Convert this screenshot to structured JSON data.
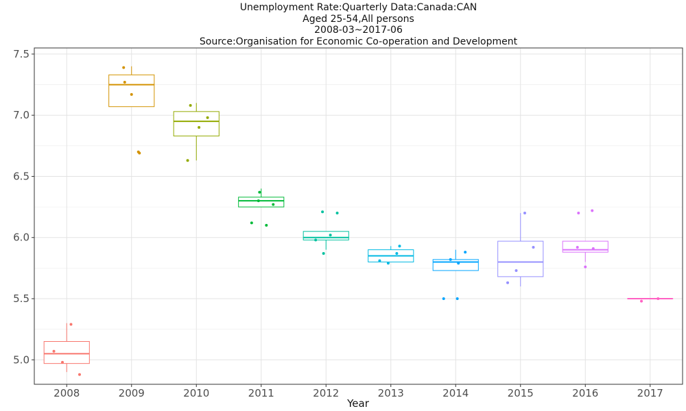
{
  "chart_data": {
    "type": "boxplot",
    "title_lines": [
      "Unemployment Rate:Quarterly Data:Canada:CAN",
      "Aged 25-54,All persons",
      "2008-03~2017-06",
      "Source:Organisation for Economic Co-operation and Development"
    ],
    "xlabel": "Year",
    "ylabel": "",
    "ylim": [
      4.8,
      7.55
    ],
    "yticks": [
      "5.0",
      "5.5",
      "6.0",
      "6.5",
      "7.0",
      "7.5"
    ],
    "grid": true,
    "legend": "none",
    "categories": [
      "2008",
      "2009",
      "2010",
      "2011",
      "2012",
      "2013",
      "2014",
      "2015",
      "2016",
      "2017"
    ],
    "colors": [
      "#F8766D",
      "#D39200",
      "#93AA00",
      "#00BA38",
      "#00C19F",
      "#00B9E3",
      "#00A5FF",
      "#9590FF",
      "#DB72FB",
      "#FF61C3"
    ],
    "boxes": [
      {
        "whisker_low": 4.9,
        "q1": 4.97,
        "median": 5.05,
        "q3": 5.15,
        "whisker_high": 5.3,
        "outliers": []
      },
      {
        "whisker_low": 7.07,
        "q1": 7.07,
        "median": 7.25,
        "q3": 7.33,
        "whisker_high": 7.4,
        "outliers": [
          6.7,
          6.7
        ]
      },
      {
        "whisker_low": 6.63,
        "q1": 6.83,
        "median": 6.95,
        "q3": 7.03,
        "whisker_high": 7.1,
        "outliers": []
      },
      {
        "whisker_low": 6.25,
        "q1": 6.25,
        "median": 6.3,
        "q3": 6.33,
        "whisker_high": 6.4,
        "outliers": [
          6.12,
          6.1
        ]
      },
      {
        "whisker_low": 5.9,
        "q1": 5.98,
        "median": 6.0,
        "q3": 6.05,
        "whisker_high": 6.05,
        "outliers": [
          6.21,
          6.2
        ]
      },
      {
        "whisker_low": 5.8,
        "q1": 5.8,
        "median": 5.85,
        "q3": 5.9,
        "whisker_high": 5.93,
        "outliers": []
      },
      {
        "whisker_low": 5.73,
        "q1": 5.73,
        "median": 5.8,
        "q3": 5.82,
        "whisker_high": 5.9,
        "outliers": [
          5.5,
          5.5
        ]
      },
      {
        "whisker_low": 5.6,
        "q1": 5.68,
        "median": 5.8,
        "q3": 5.97,
        "whisker_high": 6.2,
        "outliers": []
      },
      {
        "whisker_low": 5.8,
        "q1": 5.88,
        "median": 5.9,
        "q3": 5.97,
        "whisker_high": 5.97,
        "outliers": [
          6.2,
          6.22
        ]
      },
      {
        "whisker_low": 5.5,
        "q1": 5.5,
        "median": 5.5,
        "q3": 5.5,
        "whisker_high": 5.5,
        "outliers": []
      }
    ],
    "points": [
      [
        5.07,
        4.98,
        5.29,
        4.88
      ],
      [
        7.39,
        7.27,
        7.17,
        6.7,
        6.69
      ],
      [
        6.63,
        7.08,
        6.9,
        6.98
      ],
      [
        6.12,
        6.3,
        6.37,
        6.1,
        6.27
      ],
      [
        5.98,
        6.21,
        5.87,
        6.02,
        6.2
      ],
      [
        5.81,
        5.79,
        5.87,
        5.93
      ],
      [
        5.5,
        5.82,
        5.5,
        5.79,
        5.88
      ],
      [
        5.63,
        5.73,
        6.2,
        5.92
      ],
      [
        5.92,
        6.2,
        5.76,
        6.22,
        5.91
      ],
      [
        5.48,
        5.5
      ]
    ]
  }
}
